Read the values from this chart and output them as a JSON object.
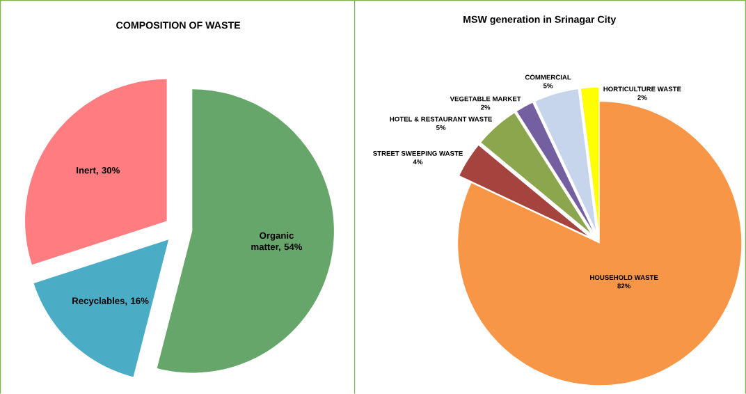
{
  "chart_data": [
    {
      "type": "pie",
      "title": "COMPOSITION OF WASTE",
      "categories": [
        "Organic matter, 54%",
        "Recyclables, 16%",
        "Inert, 30%"
      ],
      "values": [
        54,
        16,
        30
      ],
      "colors": [
        "#66a66a",
        "#4bacc6",
        "#ff7c80"
      ]
    },
    {
      "type": "pie",
      "title": "MSW generation in Srinagar City",
      "categories": [
        "HOUSEHOLD WASTE",
        "STREET SWEEPING WASTE",
        "HOTEL & RESTAURANT WASTE",
        "VEGETABLE MARKET",
        "COMMERCIAL",
        "HORTICULTURE WASTE"
      ],
      "values": [
        82,
        4,
        5,
        2,
        5,
        2
      ],
      "value_labels": [
        "82%",
        "4%",
        "5%",
        "2%",
        "5%",
        "2%"
      ],
      "colors": [
        "#f79646",
        "#a5443f",
        "#8ca64e",
        "#7460a0",
        "#c6d5ec",
        "#ffff00"
      ]
    }
  ]
}
